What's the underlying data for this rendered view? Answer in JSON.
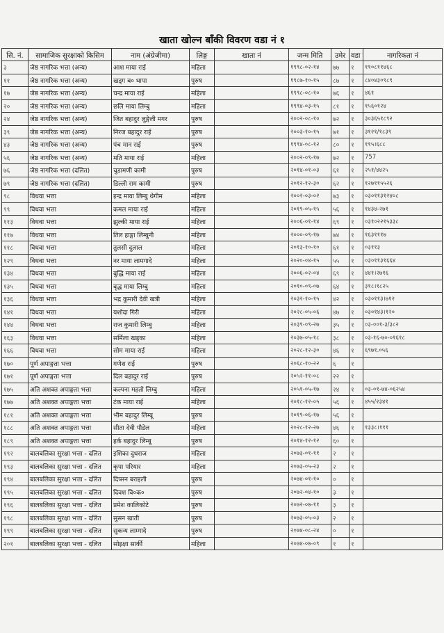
{
  "title": "खाता खोल्न बाँकी विवरण वडा नं १",
  "columns": [
    "सि. नं.",
    "सामाजिक सुरक्षाको किसिम",
    "नाम (अंग्रेजीमा)",
    "लिङ्ग",
    "खाता नं",
    "जन्म मिति",
    "उमेर",
    "वडा नं.",
    "नागरिकता नं"
  ],
  "rows": [
    [
      "३",
      "जेष्ठ नागरिक भत्ता (अन्य)",
      "आश माया राई",
      "महिला",
      "",
      "१९९८-०२-१४",
      "७७",
      "१",
      "११०८११४६८"
    ],
    [
      "११",
      "जेष्ठ नागरिक भत्ता (अन्य)",
      "खड्ग ब० थापा",
      "पुरुष",
      "",
      "१९८७-१०-१५",
      "८७",
      "१",
      "८४०४३०९८९"
    ],
    [
      "१७",
      "जेष्ठ नागरिक भत्ता (अन्य)",
      "चन्द्र माया राई",
      "महिला",
      "",
      "१९९८-०८-१०",
      "७६",
      "१",
      "४६१"
    ],
    [
      "२०",
      "जेष्ठ नागरिक भत्ता (अन्य)",
      "छलि माया लिम्बु",
      "महिला",
      "",
      "१९९४-०३-१५",
      "८१",
      "१",
      "१५६०१२४"
    ],
    [
      "२४",
      "जेष्ठ नागरिक भत्ता (अन्य)",
      "जित बहादुर लुङ्गेली मगर",
      "पुरुष",
      "",
      "२००२-०८-१०",
      "७२",
      "१",
      "३०३६५१८९२"
    ],
    [
      "३९",
      "जेष्ठ नागरिक भत्ता (अन्य)",
      "निरज बहादुर राई",
      "पुरुष",
      "",
      "२००३-१०-१५",
      "७१",
      "१",
      "३१२१/१८३९"
    ],
    [
      "४३",
      "जेष्ठ नागरिक भत्ता (अन्य)",
      "पंच मान राई",
      "पुरुष",
      "",
      "१९९४-०८-१२",
      "८०",
      "१",
      "११५।६८८"
    ],
    [
      "५६",
      "जेष्ठ नागरिक भत्ता (अन्य)",
      "मति माया राई",
      "महिला",
      "",
      "२००२-०९-१७",
      "७२",
      "१",
      "757"
    ],
    [
      "७६",
      "जेष्ठ नागरिक भत्ता (दलित)",
      "चुडामणी कामी",
      "पुरुष",
      "",
      "२०१४-०१-०३",
      "६१",
      "१",
      "२५१/४४२५"
    ],
    [
      "७९",
      "जेष्ठ नागरिक भत्ता (दलित)",
      "डिल्ली राम कामी",
      "पुरुष",
      "",
      "२०१२-१२-३०",
      "६२",
      "१",
      "१२७११५५२६"
    ],
    [
      "९८",
      "विधवा भत्ता",
      "इन्द्र माया लिम्बु थेगीम",
      "महिला",
      "",
      "२००२-०३-०२",
      "७३",
      "१",
      "०३०११३१२४०८"
    ],
    [
      "९९",
      "विधवा भत्ता",
      "कमल माया राई",
      "महिला",
      "",
      "२०१९-०५-१५",
      "५६",
      "१",
      "१४३४-२७१"
    ],
    [
      "११३",
      "विधवा भत्ता",
      "झुल्की माया राई",
      "महिला",
      "",
      "२००६-०१-१४",
      "६९",
      "१",
      "०३१०२२१५३३८"
    ],
    [
      "११७",
      "विधवा भत्ता",
      "तिल हाङ्गा लिम्बुनी",
      "महिला",
      "",
      "२०००-०९-१७",
      "७४",
      "१",
      "१६३१११७"
    ],
    [
      "११८",
      "विधवा भत्ता",
      "तुलसी दुलाल",
      "महिला",
      "",
      "२०१३-१०-१०",
      "६१",
      "१",
      "०३११३"
    ],
    [
      "१२९",
      "विधवा भत्ता",
      "नर माया लामगादे",
      "महिला",
      "",
      "२०२०-०४-१५",
      "५५",
      "१",
      "०३०११३१६६४"
    ],
    [
      "१३४",
      "विधवा भत्ता",
      "बुद्धि माया राई",
      "महिला",
      "",
      "२००६-०२-०४",
      "६९",
      "१",
      "४४१।२७१६"
    ],
    [
      "१३५",
      "विधवा भत्ता",
      "बृद्ध माया लिम्बु",
      "महिला",
      "",
      "२०१०-०९-०७",
      "६४",
      "१",
      "३१८।१८२५"
    ],
    [
      "१३६",
      "विधवा भत्ता",
      "भद्र कुमारी देवी खत्री",
      "महिला",
      "",
      "२०३२-१०-१५",
      "४२",
      "१",
      "०३०११३।७१२"
    ],
    [
      "१४१",
      "विधवा भत्ता",
      "यशोदा गिरी",
      "महिला",
      "",
      "२०२८-०५-०६",
      "४७",
      "१",
      "०३०१४३।१२०"
    ],
    [
      "१४४",
      "विधवा भत्ता",
      "राज कुमारी लिम्बु",
      "महिला",
      "",
      "२०३९-०९-२७",
      "३५",
      "१",
      "०३-००१-३/३८२"
    ],
    [
      "१६३",
      "विधवा भत्ता",
      "सर्मिला खड्का",
      "महिला",
      "",
      "२०३७-०५-१८",
      "३८",
      "१",
      "०३-१६-७०-०१६१८"
    ],
    [
      "१६६",
      "विधवा भत्ता",
      "सोम माया राई",
      "महिला",
      "",
      "२०२८-१२-३०",
      "४६",
      "१",
      "६९७१.०५६"
    ],
    [
      "१७०",
      "पूर्ण अपाङ्गता भत्ता",
      "गणेश राई",
      "पुरुष",
      "",
      "२०६८-१०-२२",
      "६",
      "१",
      ""
    ],
    [
      "१७१",
      "पूर्ण अपाङ्गता भत्ता",
      "दिल बहादुर राई",
      "पुरुष",
      "",
      "२०५२-११-०८",
      "२२",
      "१",
      ""
    ],
    [
      "१७५",
      "अति अशक्त अपाङ्गता भत्ता",
      "कल्पना महतो लिम्बु",
      "महिला",
      "",
      "२०५१-०५-१७",
      "२४",
      "१",
      "०३-०१-७४-०६२५४"
    ],
    [
      "१७७",
      "अति अशक्त अपाङ्गता भत्ता",
      "टंक माया राई",
      "महिला",
      "",
      "२०१८-१२-०५",
      "५६",
      "१",
      "४५५/२३४१"
    ],
    [
      "१८१",
      "अति अशक्त अपाङ्गता भत्ता",
      "भीम बहादुर लिम्बू",
      "पुरुष",
      "",
      "२०१९-०६-१७",
      "५६",
      "१",
      ""
    ],
    [
      "१८८",
      "अति अशक्त अपाङ्गता भत्ता",
      "सीता देवी पौडेल",
      "महिला",
      "",
      "२०२८-१२-२७",
      "४६",
      "१",
      "१३३८।१११"
    ],
    [
      "१८९",
      "अति अशक्त अपाङ्गता भत्ता",
      "हर्क बहादुर लिम्बू",
      "पुरुष",
      "",
      "२०१४-१२-१२",
      "६०",
      "१",
      ""
    ],
    [
      "१९२",
      "बालबलिका सुरक्षा भत्ता - दलित",
      "इशिका दुधराज",
      "महिला",
      "",
      "२०७३-०१-११",
      "२",
      "१",
      ""
    ],
    [
      "१९३",
      "बालबलिका सुरक्षा भत्ता - दलित",
      "कृपा परियार",
      "महिला",
      "",
      "२०७३-०५-२३",
      "२",
      "१",
      ""
    ],
    [
      "१९४",
      "बालबलिका सुरक्षा भत्ता - दलित",
      "दिप्सन बराइली",
      "पुरुष",
      "",
      "२०७४-०१-१०",
      "०",
      "१",
      ""
    ],
    [
      "१९५",
      "बालबलिका सुरक्षा भत्ता - दलित",
      "दिवश वि०क०",
      "पुरुष",
      "",
      "२०७२-०४-१०",
      "३",
      "१",
      ""
    ],
    [
      "१९६",
      "बालबलिका सुरक्षा भत्ता - दलित",
      "प्रमेश कालिकोटे",
      "पुरुष",
      "",
      "२०७२-०७-११",
      "३",
      "१",
      ""
    ],
    [
      "१९८",
      "बालबलिका सुरक्षा भत्ता - दलित",
      "सुसन खाती",
      "पुरुष",
      "",
      "२०७३-०५-०३",
      "२",
      "१",
      ""
    ],
    [
      "१९९",
      "बालबलिका सुरक्षा भत्ता - दलित",
      "सुकन्य लाम्गादे",
      "पुरुष",
      "",
      "२०७४-०८-२४",
      "०",
      "१",
      ""
    ],
    [
      "२०१",
      "बालबलिका सुरक्षा भत्ता - दलित",
      "सोइक्षा सार्की",
      "महिला",
      "",
      "२०७४-०७-०९",
      "१",
      "१",
      ""
    ]
  ]
}
